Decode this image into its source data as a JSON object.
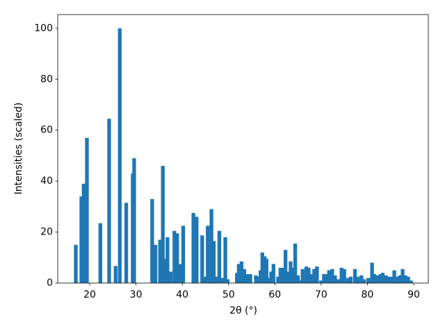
{
  "chart_data": {
    "type": "bar",
    "color": "#1f77b4",
    "x_label": "2θ (°)",
    "y_label": "Intensities (scaled)",
    "x": [
      17.0,
      18.2,
      18.7,
      19.4,
      22.3,
      24.2,
      25.6,
      26.5,
      27.9,
      29.3,
      29.6,
      33.5,
      34.2,
      35.2,
      35.8,
      36.3,
      36.8,
      37.5,
      38.3,
      38.9,
      39.5,
      40.2,
      42.4,
      43.1,
      44.3,
      45.0,
      45.5,
      46.3,
      46.8,
      47.4,
      48.0,
      48.6,
      49.3,
      49.8,
      51.8,
      52.2,
      52.8,
      53.4,
      54.0,
      54.7,
      55.9,
      56.4,
      56.9,
      57.3,
      57.8,
      58.2,
      58.6,
      59.2,
      59.7,
      60.7,
      61.2,
      61.6,
      62.3,
      62.8,
      63.4,
      64.0,
      64.4,
      65.0,
      65.5,
      66.0,
      66.8,
      67.3,
      68.0,
      68.5,
      69.1,
      70.0,
      70.6,
      71.2,
      71.7,
      72.4,
      73.0,
      73.6,
      74.4,
      75.0,
      75.8,
      76.4,
      77.3,
      77.9,
      78.7,
      79.3,
      80.2,
      81.0,
      81.5,
      82.2,
      82.8,
      83.3,
      84.0,
      84.6,
      85.2,
      85.8,
      86.4,
      87.0,
      87.6,
      88.2,
      88.8,
      89.4
    ],
    "values": [
      15,
      34,
      39,
      57,
      23.5,
      64.5,
      6.7,
      100,
      31.5,
      43,
      49,
      33,
      15,
      17,
      46,
      9.5,
      18,
      4.5,
      20.5,
      19.5,
      7.5,
      22.5,
      27.5,
      26,
      18.7,
      2.5,
      22.5,
      29,
      16.5,
      2.5,
      20.5,
      2,
      18,
      1.5,
      4,
      7.5,
      8.5,
      5.5,
      3.5,
      3.5,
      3,
      2.5,
      5,
      12,
      10.5,
      9.5,
      2,
      4.5,
      7.5,
      2.5,
      6,
      6,
      13,
      4.5,
      8.5,
      6,
      15.5,
      3,
      1,
      5.5,
      6.5,
      6,
      3.5,
      5.5,
      6.5,
      1,
      3.5,
      3.5,
      5,
      5.5,
      3,
      1.5,
      6,
      5.5,
      2,
      2.5,
      5.5,
      2.5,
      3,
      1.5,
      2,
      8,
      3.5,
      3,
      3.5,
      4,
      3,
      2.5,
      2.5,
      5,
      2.5,
      3,
      5.5,
      3,
      2.5,
      1
    ],
    "xlim": [
      13.09,
      93.15
    ],
    "ylim": [
      0,
      105.4
    ],
    "xticks": [
      20,
      30,
      40,
      50,
      60,
      70,
      80,
      90
    ],
    "yticks": [
      0,
      20,
      40,
      60,
      80,
      100
    ]
  }
}
